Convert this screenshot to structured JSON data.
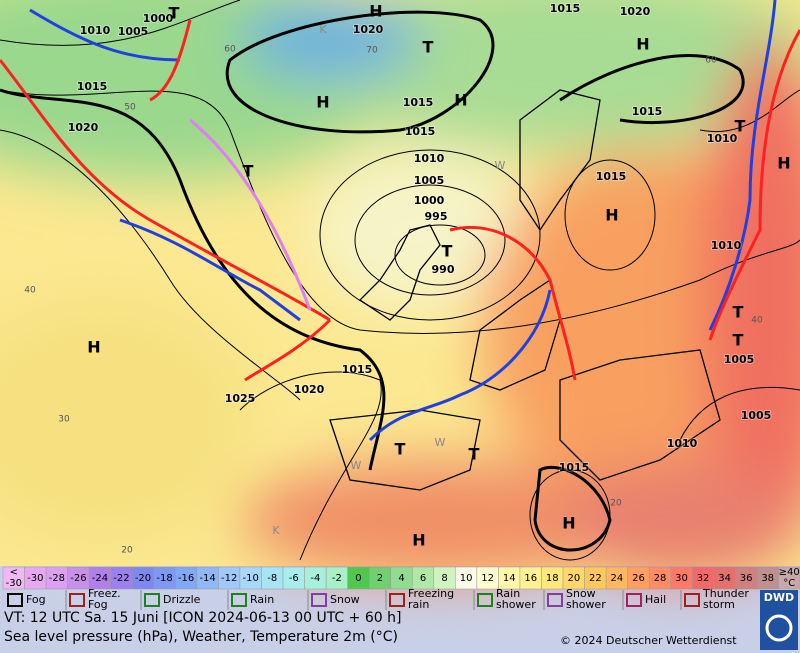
{
  "map": {
    "isobar_labels": [
      "1000",
      "1010",
      "1005",
      "1015",
      "1020",
      "1020",
      "1015",
      "1020",
      "1015",
      "1015",
      "1015",
      "1010",
      "1015",
      "1010",
      "1005",
      "1000",
      "995",
      "990",
      "1015",
      "1020",
      "1025",
      "1010",
      "1005",
      "1005",
      "1010",
      "1015"
    ],
    "pressure_centers": [
      "H",
      "H",
      "H",
      "H",
      "T",
      "T",
      "T",
      "H",
      "T",
      "H",
      "H",
      "T",
      "T",
      "T",
      "T",
      "H",
      "H",
      "T"
    ],
    "temperature_labels": [
      "40",
      "30",
      "20",
      "60",
      "50",
      "40",
      "20",
      "70",
      "60"
    ],
    "air_mass_labels": [
      "W",
      "K",
      "W",
      "W",
      "K"
    ]
  },
  "scale": {
    "below": [
      "<",
      "-30"
    ],
    "values": [
      -30,
      -28,
      -26,
      -24,
      -22,
      -20,
      -18,
      -16,
      -14,
      -12,
      -10,
      -8,
      -6,
      -4,
      -2,
      0,
      2,
      4,
      6,
      8,
      10,
      12,
      14,
      16,
      18,
      20,
      22,
      24,
      26,
      28,
      30,
      32,
      34,
      36,
      38
    ],
    "above": [
      "≥40",
      "°C"
    ]
  },
  "legend": [
    [
      "Fog"
    ],
    [
      "Freez.",
      "Fog"
    ],
    [
      "Drizzle"
    ],
    [
      "Rain"
    ],
    [
      "Snow"
    ],
    [
      "Freezing",
      "rain"
    ],
    [
      "Rain",
      "shower"
    ],
    [
      "Snow",
      "shower"
    ],
    [
      "Hail"
    ],
    [
      "Thunder",
      "storm"
    ]
  ],
  "footer": {
    "valid_time": "VT: 12 UTC Sa.  15 Juni [ICON 2024-06-13  00 UTC + 60 h]",
    "description": "Sea level pressure (hPa), Weather, Temperature 2m (°C)",
    "copyright": "© 2024 Deutscher Wetterdienst",
    "logo": "DWD"
  }
}
